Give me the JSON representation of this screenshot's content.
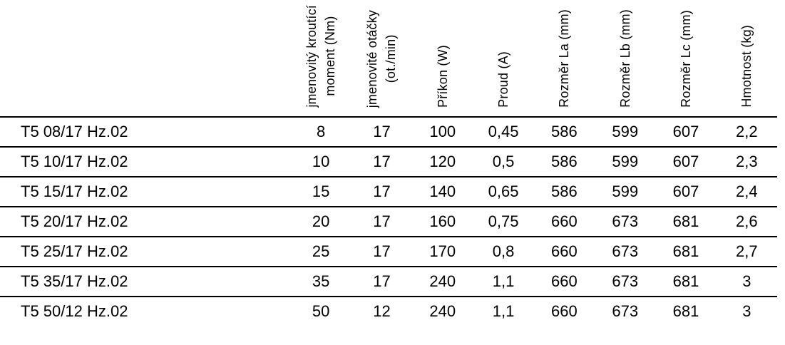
{
  "page": {
    "background_color": "#ffffff",
    "text_color": "#000000",
    "rule_color": "#000000"
  },
  "table": {
    "header": {
      "model_column_label": "",
      "columns": [
        "jmenovitý kroutící\nmoment (Nm)",
        "jmenovité otáčky\n(ot./min)",
        "Příkon (W)",
        "Proud (A)",
        "Rozměr La (mm)",
        "Rozměr Lb (mm)",
        "Rozměr Lc (mm)",
        "Hmotnost (kg)"
      ]
    },
    "rows": [
      {
        "model": "T5 08/17 Hz.02",
        "values": [
          "8",
          "17",
          "100",
          "0,45",
          "586",
          "599",
          "607",
          "2,2"
        ]
      },
      {
        "model": "T5 10/17 Hz.02",
        "values": [
          "10",
          "17",
          "120",
          "0,5",
          "586",
          "599",
          "607",
          "2,3"
        ]
      },
      {
        "model": "T5 15/17 Hz.02",
        "values": [
          "15",
          "17",
          "140",
          "0,65",
          "586",
          "599",
          "607",
          "2,4"
        ]
      },
      {
        "model": "T5 20/17 Hz.02",
        "values": [
          "20",
          "17",
          "160",
          "0,75",
          "660",
          "673",
          "681",
          "2,6"
        ]
      },
      {
        "model": "T5 25/17 Hz.02",
        "values": [
          "25",
          "17",
          "170",
          "0,8",
          "660",
          "673",
          "681",
          "2,7"
        ]
      },
      {
        "model": "T5 35/17 Hz.02",
        "values": [
          "35",
          "17",
          "240",
          "1,1",
          "660",
          "673",
          "681",
          "3"
        ]
      },
      {
        "model": "T5 50/12 Hz.02",
        "values": [
          "50",
          "12",
          "240",
          "1,1",
          "660",
          "673",
          "681",
          "3"
        ]
      }
    ]
  }
}
